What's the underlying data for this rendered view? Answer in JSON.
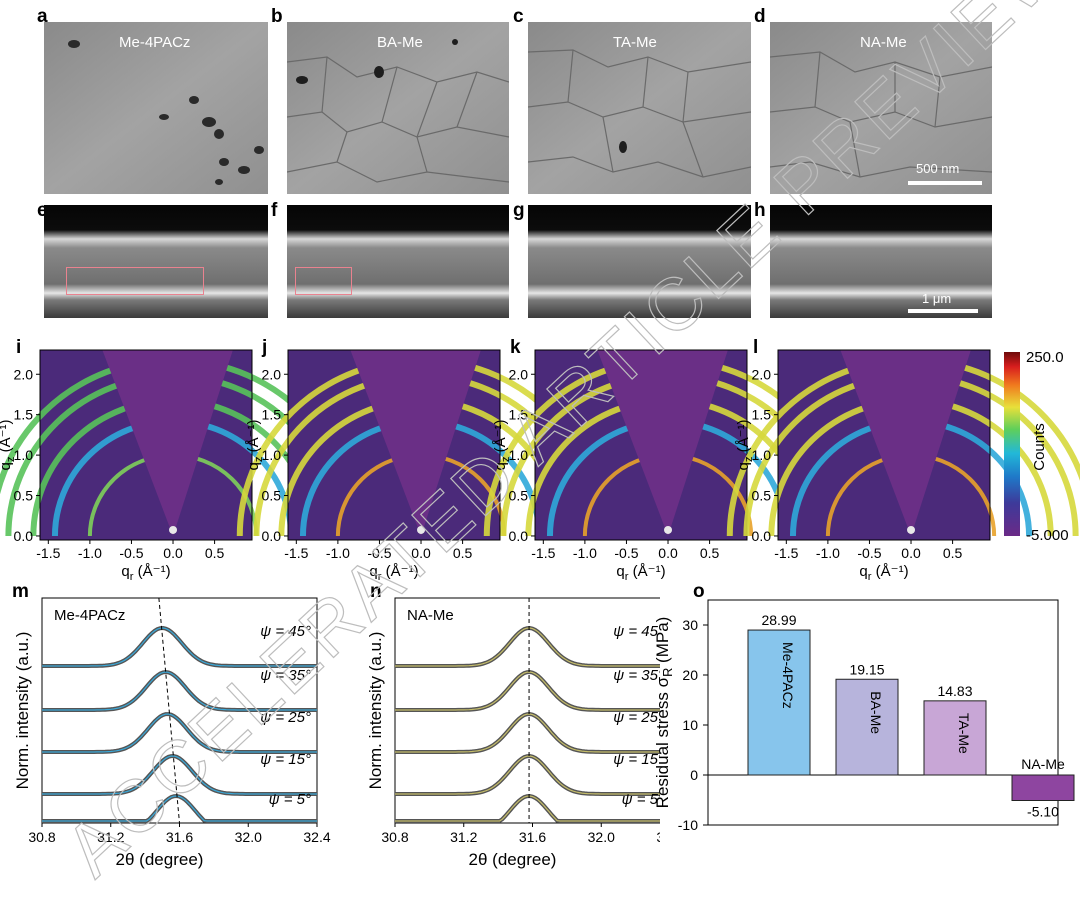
{
  "panel_letters": {
    "a": "a",
    "b": "b",
    "c": "c",
    "d": "d",
    "e": "e",
    "f": "f",
    "g": "g",
    "h": "h",
    "i": "i",
    "j": "j",
    "k": "k",
    "l": "l",
    "m": "m",
    "n": "n",
    "o": "o"
  },
  "sem_top": {
    "labels": [
      "Me-4PACz",
      "BA-Me",
      "TA-Me",
      "NA-Me"
    ],
    "scale_label": "500 nm"
  },
  "sem_cross": {
    "scale_label": "1 μm"
  },
  "giwaxs": {
    "x_label": "q_r (Å⁻¹)",
    "y_label": "q_z (Å⁻¹)",
    "x_ticks": [
      "-1.5",
      "-1.0",
      "-0.5",
      "0.0",
      "0.5"
    ],
    "y_ticks": [
      "0.0",
      "0.5",
      "1.0",
      "1.5",
      "2.0"
    ],
    "colorbar_max": "250.0",
    "colorbar_min": "-5.000",
    "colorbar_label": "Counts"
  },
  "xrd": {
    "x_label": "2θ (degree)",
    "y_label": "Norm. intensity (a.u.)",
    "x_ticks": [
      "30.8",
      "31.2",
      "31.6",
      "32.0",
      "32.4"
    ],
    "psi_labels": [
      "ψ = 45°",
      "ψ = 35°",
      "ψ = 25°",
      "ψ = 15°",
      "ψ = 5°"
    ],
    "panel_m_title": "Me-4PACz",
    "panel_n_title": "NA-Me"
  },
  "watermark": "ACCELERATED ARTICLE PREVIEW",
  "chart_data": {
    "type": "bar",
    "categories": [
      "Me-4PACz",
      "BA-Me",
      "TA-Me",
      "NA-Me"
    ],
    "values": [
      28.99,
      19.15,
      14.83,
      -5.1
    ],
    "value_labels": [
      "28.99",
      "19.15",
      "14.83",
      "-5.10"
    ],
    "ylabel": "Residual stress σ_R (MPa)",
    "ylim": [
      -10,
      35
    ],
    "yticks": [
      -10,
      0,
      10,
      20,
      30
    ],
    "colors": [
      "#87c5ec",
      "#b7b4dc",
      "#c8a6d6",
      "#8e45a0"
    ]
  }
}
